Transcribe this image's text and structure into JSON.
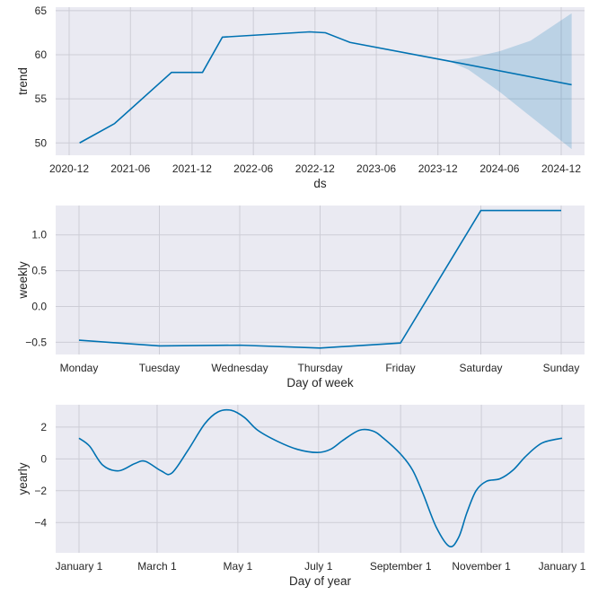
{
  "chart_data": [
    {
      "type": "line",
      "xlabel": "ds",
      "ylabel": "trend",
      "x_kind": "date",
      "xlim": [
        "2020-11-20",
        "2025-01-25"
      ],
      "ylim": [
        48.6,
        65.4
      ],
      "xticks": [
        "2020-12",
        "2021-06",
        "2021-12",
        "2022-06",
        "2022-12",
        "2023-06",
        "2023-12",
        "2024-06",
        "2024-12"
      ],
      "yticks": [
        50,
        55,
        60,
        65
      ],
      "x": [
        "2021-01-01",
        "2021-04-15",
        "2021-10-01",
        "2022-01-01",
        "2022-03-01",
        "2022-11-15",
        "2023-01-01",
        "2023-03-15",
        "2024-01-01",
        "2025-01-01"
      ],
      "y": [
        50.0,
        52.2,
        58.0,
        58.0,
        62.0,
        62.6,
        62.5,
        61.4,
        59.3,
        56.6
      ],
      "band": {
        "x": [
          "2024-01-01",
          "2024-03-01",
          "2024-06-01",
          "2024-09-01",
          "2025-01-01"
        ],
        "upper": [
          59.3,
          59.6,
          60.4,
          61.6,
          64.7
        ],
        "lower": [
          59.3,
          58.3,
          55.8,
          53.0,
          49.3
        ]
      },
      "grid": true,
      "color": "#0072B2",
      "band_color": "#0072B2"
    },
    {
      "type": "line",
      "xlabel": "Day of week",
      "ylabel": "weekly",
      "x_kind": "category",
      "categories": [
        "Monday",
        "Tuesday",
        "Wednesday",
        "Thursday",
        "Friday",
        "Saturday",
        "Sunday"
      ],
      "y": [
        -0.47,
        -0.55,
        -0.54,
        -0.58,
        -0.51,
        1.34,
        1.34
      ],
      "ylim": [
        -0.67,
        1.41
      ],
      "yticks": [
        -0.5,
        0.0,
        0.5,
        1.0
      ],
      "ytick_labels": [
        "−0.5",
        "0.0",
        "0.5",
        "1.0"
      ],
      "grid": true,
      "color": "#0072B2"
    },
    {
      "type": "line",
      "xlabel": "Day of year",
      "ylabel": "yearly",
      "x_kind": "dayofyear",
      "xticks": [
        0,
        59,
        120,
        181,
        243,
        304,
        365
      ],
      "xtick_labels": [
        "January 1",
        "March 1",
        "May 1",
        "July 1",
        "September 1",
        "November 1",
        "January 1"
      ],
      "ylim": [
        -5.9,
        3.4
      ],
      "yticks": [
        -4,
        -2,
        0,
        2
      ],
      "ytick_labels": [
        "−4",
        "−2",
        "0",
        "2"
      ],
      "x": [
        0,
        8,
        18,
        30,
        42,
        50,
        62,
        70,
        82,
        95,
        105,
        115,
        125,
        135,
        150,
        165,
        180,
        190,
        200,
        212,
        222,
        230,
        243,
        252,
        260,
        270,
        280,
        287,
        293,
        300,
        308,
        318,
        328,
        338,
        350,
        365
      ],
      "y": [
        1.3,
        0.8,
        -0.4,
        -0.75,
        -0.3,
        -0.15,
        -0.75,
        -0.9,
        0.5,
        2.2,
        2.95,
        3.05,
        2.6,
        1.8,
        1.1,
        0.6,
        0.4,
        0.6,
        1.2,
        1.8,
        1.75,
        1.3,
        0.3,
        -0.7,
        -2.2,
        -4.3,
        -5.5,
        -4.9,
        -3.4,
        -2.0,
        -1.4,
        -1.25,
        -0.7,
        0.2,
        1.0,
        1.3
      ],
      "grid": true,
      "color": "#0072B2"
    }
  ]
}
